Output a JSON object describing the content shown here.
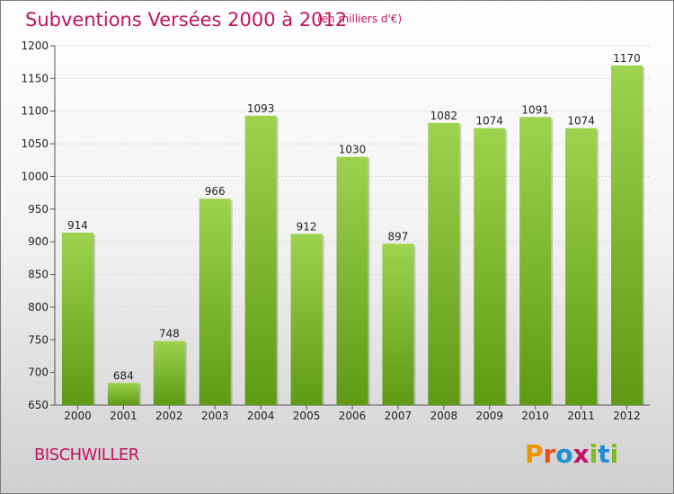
{
  "title": "Subventions Versées 2000 à 2012",
  "unit_note": "(en milliers d'€)",
  "city": "BISCHWILLER",
  "logo": {
    "text": "Proxiti",
    "letters": [
      "P",
      "r",
      "o",
      "x",
      "i",
      "t",
      "i"
    ],
    "colors": [
      "#f29400",
      "#e8501a",
      "#1f8fd6",
      "#c1126b",
      "#7db81d",
      "#1f8fd6",
      "#7db81d"
    ]
  },
  "colors": {
    "bar_top": "#9dd34e",
    "bar_bottom": "#5f9a14",
    "title": "#c0145e"
  },
  "chart_data": {
    "type": "bar",
    "title": "Subventions Versées 2000 à 2012",
    "xlabel": "",
    "ylabel": "",
    "categories": [
      "2000",
      "2001",
      "2002",
      "2003",
      "2004",
      "2005",
      "2006",
      "2007",
      "2008",
      "2009",
      "2010",
      "2011",
      "2012"
    ],
    "values": [
      914,
      684,
      748,
      966,
      1093,
      912,
      1030,
      897,
      1082,
      1074,
      1091,
      1074,
      1170
    ],
    "ylim": [
      650,
      1200
    ],
    "yticks": [
      650,
      700,
      750,
      800,
      850,
      900,
      950,
      1000,
      1050,
      1100,
      1150,
      1200
    ],
    "grid": true
  }
}
